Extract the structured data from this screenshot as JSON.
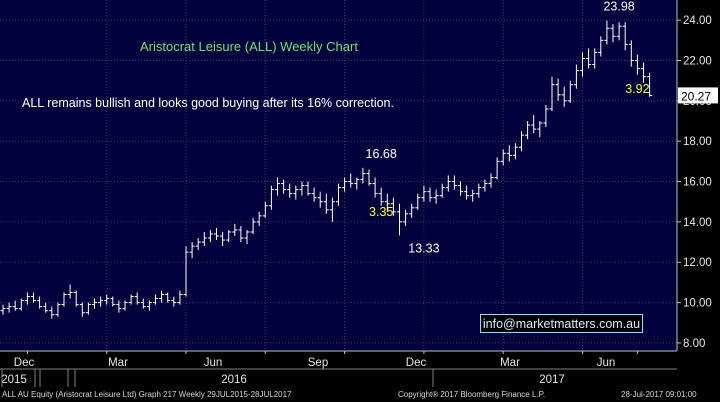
{
  "chart_data": {
    "type": "ohlc-bar",
    "title": "Aristocrat Leisure (ALL) Weekly Chart",
    "note": "ALL remains bullish and looks good buying after its 16% correction.",
    "contact": "info@marketmatters.com.au",
    "ylim": [
      7.6,
      25.0
    ],
    "y_ticks": [
      8,
      10,
      12,
      14,
      16,
      18,
      20,
      22,
      24
    ],
    "y_tick_labels": [
      "8.00",
      "10.00",
      "12.00",
      "14.00",
      "16.00",
      "18.00",
      "20.00",
      "22.00",
      "24.00"
    ],
    "last_price": 20.27,
    "last_price_label": "20.27",
    "month_labels": [
      "Dec",
      "Mar",
      "Jun",
      "Sep",
      "Dec",
      "Mar",
      "Jun"
    ],
    "year_labels": [
      "2015",
      "2016",
      "2017"
    ],
    "annotations": [
      {
        "text": "23.98",
        "week": 101,
        "price": 23.98,
        "role": "high"
      },
      {
        "text": "16.68",
        "week": 62,
        "price": 16.68,
        "role": "high"
      },
      {
        "text": "13.33",
        "week": 69,
        "price": 13.33,
        "role": "low"
      },
      {
        "text": "3.35",
        "week": 62,
        "price": 14.5,
        "role": "fall"
      },
      {
        "text": "3.92",
        "week": 104,
        "price": 20.6,
        "role": "fall"
      }
    ],
    "bars_ohlc": [
      [
        9.6,
        9.9,
        9.4,
        9.7
      ],
      [
        9.7,
        10.0,
        9.5,
        9.8
      ],
      [
        9.8,
        10.1,
        9.6,
        9.7
      ],
      [
        9.7,
        10.2,
        9.6,
        10.1
      ],
      [
        10.1,
        10.5,
        9.9,
        10.3
      ],
      [
        10.3,
        10.5,
        10.0,
        10.1
      ],
      [
        10.1,
        10.3,
        9.7,
        9.8
      ],
      [
        9.8,
        10.0,
        9.5,
        9.6
      ],
      [
        9.6,
        9.8,
        9.2,
        9.4
      ],
      [
        9.4,
        10.0,
        9.3,
        9.9
      ],
      [
        9.9,
        10.5,
        9.8,
        10.4
      ],
      [
        10.4,
        10.9,
        10.2,
        10.5
      ],
      [
        10.5,
        10.6,
        9.8,
        9.9
      ],
      [
        9.9,
        10.0,
        9.3,
        9.5
      ],
      [
        9.5,
        10.0,
        9.4,
        9.9
      ],
      [
        9.9,
        10.2,
        9.7,
        10.0
      ],
      [
        10.0,
        10.3,
        9.8,
        10.1
      ],
      [
        10.1,
        10.4,
        9.9,
        10.2
      ],
      [
        10.2,
        10.3,
        9.8,
        9.9
      ],
      [
        9.9,
        10.1,
        9.5,
        9.7
      ],
      [
        9.7,
        10.1,
        9.6,
        10.0
      ],
      [
        10.0,
        10.4,
        9.9,
        10.3
      ],
      [
        10.3,
        10.5,
        9.9,
        10.0
      ],
      [
        10.0,
        10.2,
        9.7,
        9.8
      ],
      [
        9.8,
        10.1,
        9.6,
        10.0
      ],
      [
        10.0,
        10.4,
        9.9,
        10.2
      ],
      [
        10.2,
        10.6,
        10.0,
        10.4
      ],
      [
        10.4,
        10.5,
        10.0,
        10.1
      ],
      [
        10.1,
        10.3,
        9.8,
        10.0
      ],
      [
        10.0,
        10.6,
        9.9,
        10.4
      ],
      [
        10.4,
        12.8,
        10.3,
        12.5
      ],
      [
        12.5,
        13.0,
        12.2,
        12.8
      ],
      [
        12.8,
        13.2,
        12.6,
        13.0
      ],
      [
        13.0,
        13.5,
        12.8,
        13.2
      ],
      [
        13.2,
        13.6,
        13.0,
        13.4
      ],
      [
        13.4,
        13.7,
        13.1,
        13.3
      ],
      [
        13.3,
        13.5,
        12.8,
        13.1
      ],
      [
        13.1,
        13.6,
        13.0,
        13.5
      ],
      [
        13.5,
        13.9,
        13.3,
        13.6
      ],
      [
        13.6,
        13.8,
        13.0,
        13.2
      ],
      [
        13.2,
        13.6,
        12.9,
        13.5
      ],
      [
        13.5,
        14.2,
        13.4,
        14.0
      ],
      [
        14.0,
        14.5,
        13.8,
        14.3
      ],
      [
        14.3,
        15.0,
        14.2,
        14.8
      ],
      [
        14.8,
        15.8,
        14.6,
        15.6
      ],
      [
        15.6,
        16.2,
        15.3,
        15.9
      ],
      [
        15.9,
        16.1,
        15.4,
        15.6
      ],
      [
        15.6,
        15.9,
        15.2,
        15.4
      ],
      [
        15.4,
        15.8,
        15.1,
        15.6
      ],
      [
        15.6,
        16.0,
        15.3,
        15.8
      ],
      [
        15.8,
        16.0,
        15.3,
        15.4
      ],
      [
        15.4,
        15.7,
        15.0,
        15.2
      ],
      [
        15.2,
        15.5,
        14.7,
        15.0
      ],
      [
        15.0,
        15.4,
        14.4,
        14.6
      ],
      [
        14.6,
        15.2,
        14.0,
        15.0
      ],
      [
        15.0,
        15.9,
        14.8,
        15.7
      ],
      [
        15.7,
        16.2,
        15.5,
        16.0
      ],
      [
        16.0,
        16.4,
        15.7,
        15.9
      ],
      [
        15.9,
        16.2,
        15.6,
        16.1
      ],
      [
        16.1,
        16.68,
        15.9,
        16.4
      ],
      [
        16.4,
        16.6,
        15.8,
        15.9
      ],
      [
        15.9,
        16.2,
        15.2,
        15.4
      ],
      [
        15.4,
        15.7,
        14.8,
        15.0
      ],
      [
        15.0,
        15.4,
        14.5,
        14.9
      ],
      [
        14.9,
        15.2,
        14.3,
        14.5
      ],
      [
        14.5,
        14.9,
        13.33,
        14.0
      ],
      [
        14.0,
        14.6,
        13.8,
        14.4
      ],
      [
        14.4,
        14.9,
        14.2,
        14.7
      ],
      [
        14.7,
        15.4,
        14.6,
        15.2
      ],
      [
        15.2,
        15.8,
        15.0,
        15.5
      ],
      [
        15.5,
        15.7,
        15.0,
        15.2
      ],
      [
        15.2,
        15.6,
        14.9,
        15.3
      ],
      [
        15.3,
        15.9,
        15.2,
        15.7
      ],
      [
        15.7,
        16.3,
        15.5,
        16.0
      ],
      [
        16.0,
        16.3,
        15.6,
        15.8
      ],
      [
        15.8,
        16.0,
        15.3,
        15.5
      ],
      [
        15.5,
        15.8,
        15.1,
        15.3
      ],
      [
        15.3,
        15.6,
        15.0,
        15.4
      ],
      [
        15.4,
        15.9,
        15.2,
        15.7
      ],
      [
        15.7,
        16.1,
        15.5,
        15.9
      ],
      [
        15.9,
        16.4,
        15.7,
        16.2
      ],
      [
        16.2,
        17.2,
        16.1,
        17.0
      ],
      [
        17.0,
        17.6,
        16.8,
        17.4
      ],
      [
        17.4,
        17.8,
        17.0,
        17.3
      ],
      [
        17.3,
        17.9,
        17.1,
        17.7
      ],
      [
        17.7,
        18.5,
        17.5,
        18.3
      ],
      [
        18.3,
        19.0,
        18.1,
        18.8
      ],
      [
        18.8,
        19.3,
        18.4,
        18.6
      ],
      [
        18.6,
        19.0,
        18.2,
        18.9
      ],
      [
        18.9,
        19.8,
        18.7,
        19.6
      ],
      [
        19.6,
        21.2,
        19.5,
        20.8
      ],
      [
        20.8,
        21.1,
        20.0,
        20.3
      ],
      [
        20.3,
        20.7,
        19.7,
        20.0
      ],
      [
        20.0,
        21.0,
        19.9,
        20.8
      ],
      [
        20.8,
        21.8,
        20.6,
        21.5
      ],
      [
        21.5,
        22.4,
        21.2,
        22.1
      ],
      [
        22.1,
        22.6,
        21.6,
        21.8
      ],
      [
        21.8,
        22.6,
        21.6,
        22.4
      ],
      [
        22.4,
        23.2,
        22.2,
        23.0
      ],
      [
        23.0,
        23.98,
        22.8,
        23.6
      ],
      [
        23.6,
        23.8,
        22.9,
        23.2
      ],
      [
        23.2,
        23.9,
        23.0,
        23.7
      ],
      [
        23.7,
        23.9,
        22.5,
        22.8
      ],
      [
        22.8,
        23.0,
        21.7,
        22.0
      ],
      [
        22.0,
        22.3,
        21.3,
        21.6
      ],
      [
        21.6,
        21.9,
        20.9,
        21.2
      ],
      [
        21.2,
        21.4,
        20.2,
        20.27
      ]
    ]
  },
  "footer": {
    "left": "ALL AU Equity (Aristocrat Leisure Ltd) Graph 217  Weekly 29JUL2015-28JUL2017",
    "middle": "Copyright® 2017 Bloomberg Finance L.P.",
    "right": "28-Jul-2017 09:01:00"
  }
}
